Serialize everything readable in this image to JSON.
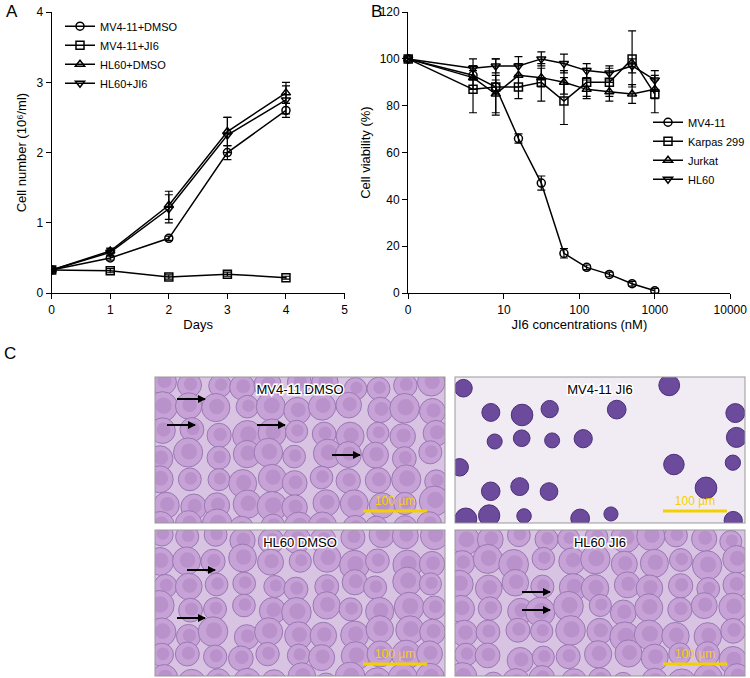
{
  "chart_data": [
    {
      "panel": "A",
      "type": "line",
      "x_label": "Days",
      "y_label": "Cell number (10⁶/ml)",
      "x": [
        0,
        1,
        2,
        3,
        4
      ],
      "xlim": [
        0,
        5
      ],
      "xticks": [
        0,
        1,
        2,
        3,
        4,
        5
      ],
      "ylim": [
        0,
        4
      ],
      "yticks": [
        0,
        1,
        2,
        3,
        4
      ],
      "legend": "upper left",
      "grid": false,
      "series": [
        {
          "name": "MV4-11+DMSO",
          "color": "#000000",
          "marker": "circle-open",
          "values": [
            0.33,
            0.5,
            0.78,
            2.0,
            2.6
          ],
          "errors": [
            0.02,
            0.03,
            0.03,
            0.1,
            0.1
          ]
        },
        {
          "name": "MV4-11+JI6",
          "color": "#000000",
          "marker": "square-open",
          "values": [
            0.33,
            0.32,
            0.23,
            0.27,
            0.22
          ],
          "errors": [
            0.02,
            0.03,
            0.03,
            0.03,
            0.02
          ]
        },
        {
          "name": "HL60+DMSO",
          "color": "#000000",
          "marker": "triangle-up-open",
          "values": [
            0.33,
            0.6,
            1.25,
            2.3,
            2.85
          ],
          "errors": [
            0.02,
            0.04,
            0.2,
            0.2,
            0.15
          ]
        },
        {
          "name": "HL60+JI6",
          "color": "#000000",
          "marker": "triangle-down-open",
          "values": [
            0.33,
            0.58,
            1.2,
            2.25,
            2.75
          ],
          "errors": [
            0.02,
            0.05,
            0.2,
            0.25,
            0.2
          ]
        }
      ]
    },
    {
      "panel": "B",
      "type": "line",
      "x_label": "JI6 concentrations (nM)",
      "y_label": "Cell viability (%)",
      "log": "x",
      "x": [
        0,
        3.9,
        7.8,
        15.6,
        31.3,
        62.5,
        125,
        250,
        500,
        1000
      ],
      "xlim": [
        0,
        10000
      ],
      "xticks": [
        0,
        10,
        100,
        1000,
        10000
      ],
      "ylim": [
        0,
        120
      ],
      "yticks": [
        0,
        20,
        40,
        60,
        80,
        100,
        120
      ],
      "legend": "right",
      "grid": false,
      "series": [
        {
          "name": "MV4-11",
          "color": "#000000",
          "marker": "circle-open",
          "values": [
            100,
            93,
            88,
            66,
            47,
            17,
            11,
            8,
            4,
            1
          ],
          "errors": [
            0,
            2,
            3,
            2,
            3,
            2,
            1,
            1,
            1,
            1
          ]
        },
        {
          "name": "Karpas 299",
          "color": "#000000",
          "marker": "square-open",
          "values": [
            100,
            87,
            88,
            88,
            90,
            82,
            90,
            90,
            100,
            85
          ],
          "errors": [
            0,
            10,
            12,
            5,
            8,
            10,
            6,
            6,
            12,
            8
          ]
        },
        {
          "name": "Jurkat",
          "color": "#000000",
          "marker": "triangle-up-open",
          "values": [
            100,
            92,
            85,
            93,
            92,
            90,
            87,
            86,
            85,
            87
          ],
          "errors": [
            0,
            5,
            8,
            5,
            4,
            5,
            4,
            4,
            4,
            4
          ]
        },
        {
          "name": "HL60",
          "color": "#000000",
          "marker": "triangle-down-open",
          "values": [
            100,
            96,
            97,
            97,
            100,
            98,
            95,
            94,
            97,
            91
          ],
          "errors": [
            0,
            4,
            3,
            4,
            3,
            4,
            3,
            3,
            3,
            4
          ]
        }
      ]
    }
  ],
  "images": {
    "panel": "C",
    "scale_bar": "100 µm",
    "panels": [
      {
        "label": "MV4-11 DMSO"
      },
      {
        "label": "MV4-11 JI6"
      },
      {
        "label": "HL60 DMSO"
      },
      {
        "label": "HL60 JI6"
      }
    ]
  }
}
